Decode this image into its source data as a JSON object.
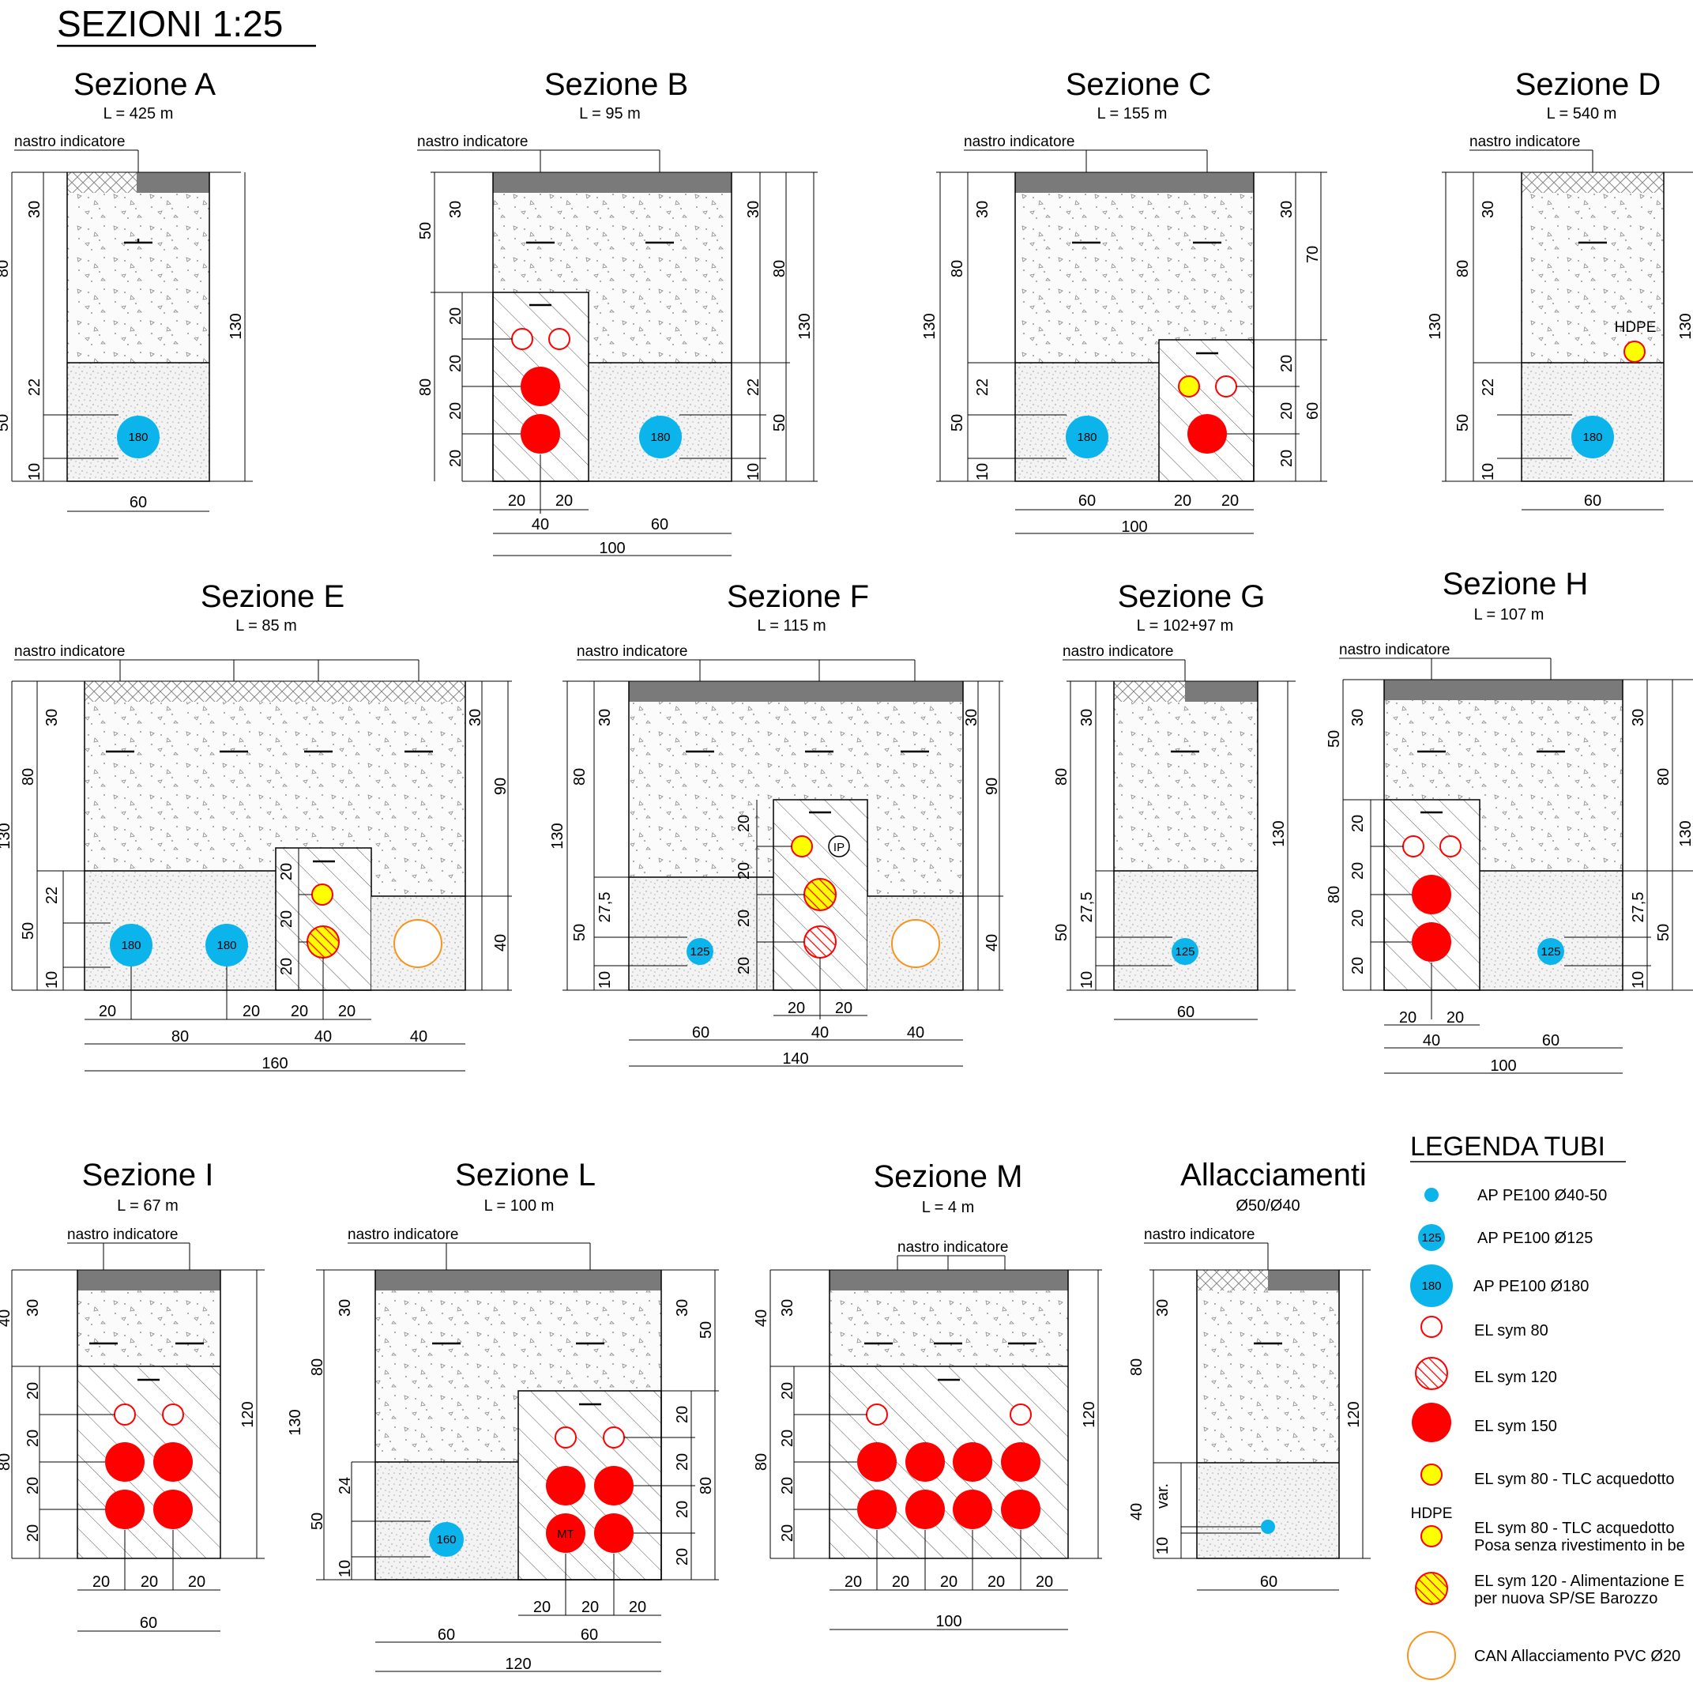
{
  "title": "SEZIONI 1:25",
  "labels": {
    "nastro": "nastro indicatore",
    "hdpe": "HDPE",
    "ip": "IP",
    "mt": "MT",
    "var": "var."
  },
  "sections": {
    "A": {
      "title": "Sezione A",
      "length": "L = 425 m"
    },
    "B": {
      "title": "Sezione B",
      "length": "L = 95 m"
    },
    "C": {
      "title": "Sezione C",
      "length": "L = 155 m"
    },
    "D": {
      "title": "Sezione D",
      "length": "L = 540 m"
    },
    "E": {
      "title": "Sezione E",
      "length": "L = 85 m"
    },
    "F": {
      "title": "Sezione F",
      "length": "L = 115 m"
    },
    "G": {
      "title": "Sezione G",
      "length": "L = 102+97 m"
    },
    "H": {
      "title": "Sezione H",
      "length": "L = 107 m"
    },
    "I": {
      "title": "Sezione I",
      "length": "L = 67 m"
    },
    "L": {
      "title": "Sezione L",
      "length": "L = 100 m"
    },
    "M": {
      "title": "Sezione M",
      "length": "L = 4 m"
    },
    "ALL": {
      "title": "Allacciamenti",
      "length": "Ø50/Ø40"
    }
  },
  "legend": {
    "title": "LEGENDA TUBI",
    "items": [
      {
        "symbol": "ap-small",
        "label": "AP PE100 Ø40-50"
      },
      {
        "symbol": "ap-125",
        "label": "AP PE100 Ø125",
        "tag": "125"
      },
      {
        "symbol": "ap-180",
        "label": "AP PE100 Ø180",
        "tag": "180"
      },
      {
        "symbol": "el-80",
        "label": "EL sym 80"
      },
      {
        "symbol": "el-120",
        "label": "EL sym 120"
      },
      {
        "symbol": "el-150",
        "label": "EL sym 150"
      },
      {
        "symbol": "tlc-80",
        "label": "EL sym 80 - TLC acquedotto"
      },
      {
        "symbol": "tlc-80-hdpe",
        "label": "EL sym 80 - TLC acquedotto",
        "label2": "Posa senza rivestimento in be",
        "tag": "HDPE"
      },
      {
        "symbol": "el-120-y",
        "label": "EL sym 120 - Alimentazione E",
        "label2": "per nuova SP/SE Barozzo"
      },
      {
        "symbol": "can",
        "label": "CAN Allacciamento PVC Ø20"
      }
    ]
  },
  "colors": {
    "ap_blue": "#0bb5ec",
    "el_red": "#ff0000",
    "tlc_yellow": "#ffff00",
    "can_orange": "#f7931e",
    "asphalt": "#7a7a7a"
  }
}
